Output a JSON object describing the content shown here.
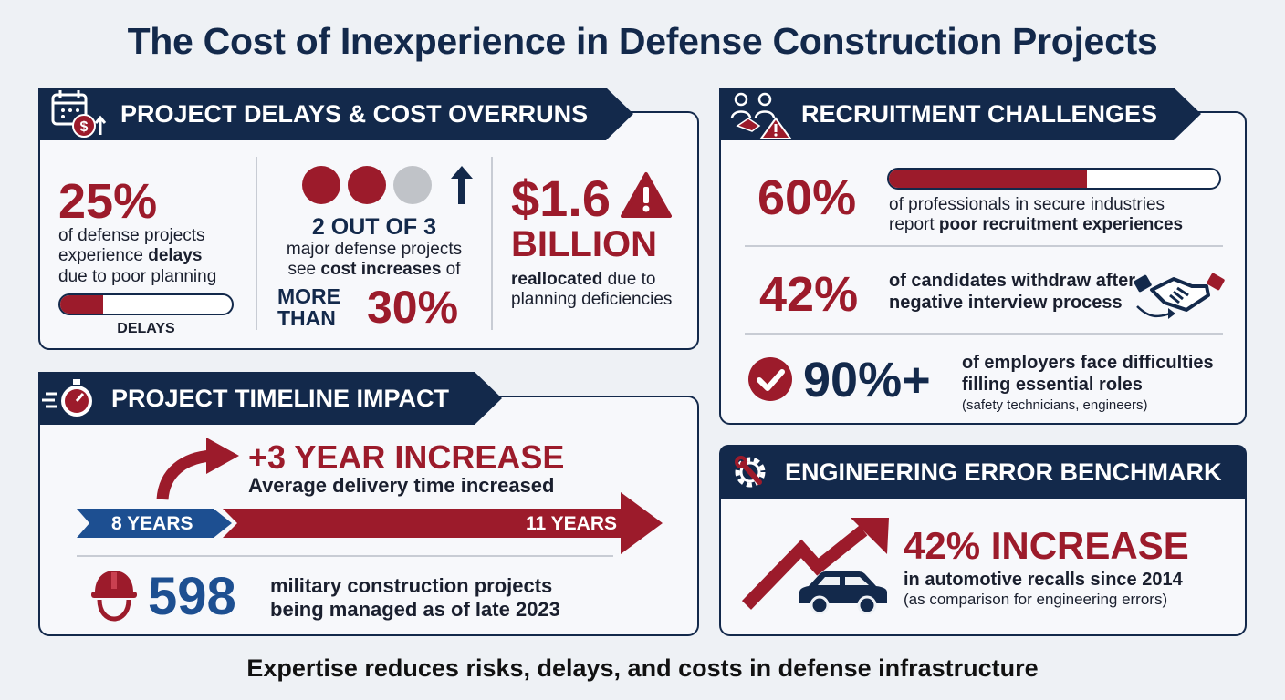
{
  "title": "The Cost of Inexperience in Defense Construction Projects",
  "footer": "Expertise reduces risks, delays, and costs in defense infrastructure",
  "colors": {
    "navy": "#13294b",
    "red": "#9c1b2b",
    "blue": "#1d4f91",
    "grey": "#c0c3c8"
  },
  "delays_panel": {
    "header": "PROJECT DELAYS & COST OVERRUNS",
    "icon": "calendar-dollar-icon",
    "stat1": {
      "value": "25%",
      "line1": "of defense projects",
      "line2_pre": "experience ",
      "line2_bold": "delays",
      "line3": "due to poor planning",
      "bar_fraction": 0.25,
      "bar_label": "DELAYS"
    },
    "stat2": {
      "dots_filled": 2,
      "dots_total": 3,
      "headline": "2 OUT OF 3",
      "line1": "major defense projects",
      "line2_pre": "see ",
      "line2_bold": "cost increases",
      "line2_post": " of",
      "more": "MORE",
      "than": "THAN",
      "value": "30%"
    },
    "stat3": {
      "value": "$1.6",
      "unit": "BILLION",
      "line1_bold": "reallocated",
      "line1_post": " due to",
      "line2": "planning deficiencies"
    }
  },
  "timeline_panel": {
    "header": "PROJECT TIMELINE IMPACT",
    "icon": "stopwatch-icon",
    "increase": "+3 YEAR INCREASE",
    "increase_sub": "Average delivery time increased",
    "before": "8 YEARS",
    "after": "11 YEARS",
    "projects_value": "598",
    "projects_line1": "military construction projects",
    "projects_line2": "being managed as of late 2023"
  },
  "recruitment_panel": {
    "header": "RECRUITMENT CHALLENGES",
    "icon": "handshake-warning-icon",
    "stat1": {
      "value": "60%",
      "bar_fraction": 0.6,
      "line1": "of professionals in secure industries",
      "line2_pre": "report ",
      "line2_bold": "poor recruitment experiences"
    },
    "stat2": {
      "value": "42%",
      "line1": "of candidates withdraw after",
      "line2": "negative interview process"
    },
    "stat3": {
      "value": "90%+",
      "line1": "of employers face difficulties",
      "line2": "filling essential roles",
      "line3": "(safety technicians, engineers)"
    }
  },
  "engineering_panel": {
    "header": "ENGINEERING ERROR BENCHMARK",
    "icon": "gear-wrench-icon",
    "value": "42% INCREASE",
    "line1": "in automotive recalls since 2014",
    "line2": "(as comparison for engineering errors)"
  }
}
